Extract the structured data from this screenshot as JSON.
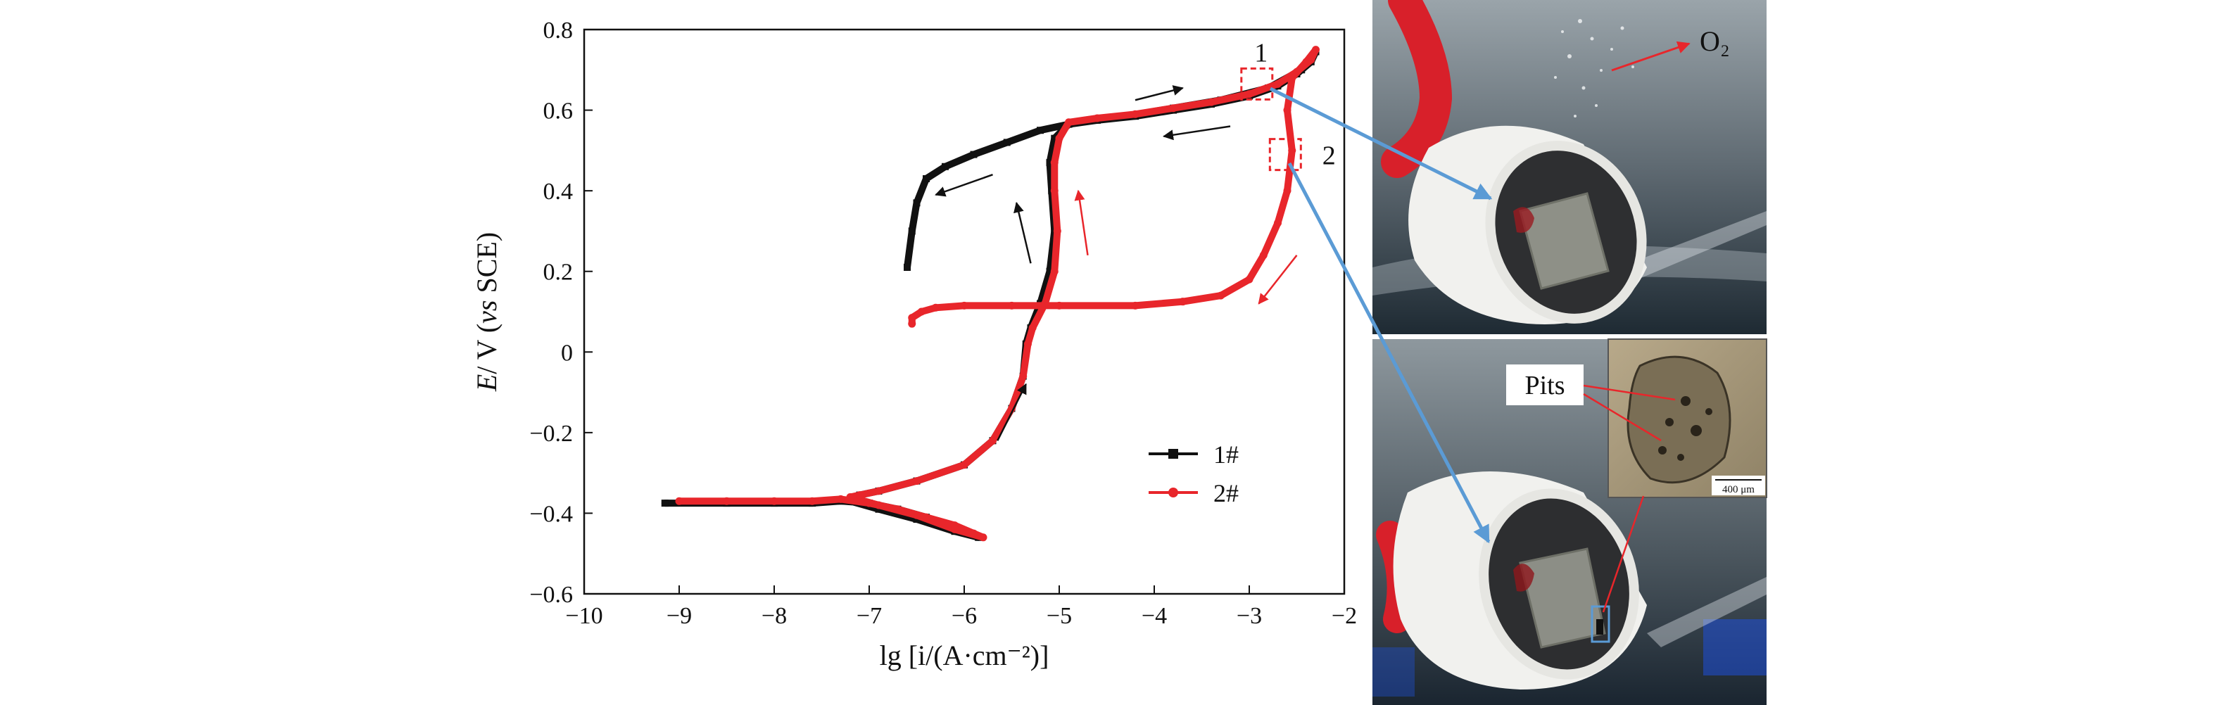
{
  "chart_data": {
    "type": "line",
    "xlabel": "lg [i/(A·cm⁻²)]",
    "ylabel_parts": [
      "E",
      "/ V (",
      "vs",
      " SCE)"
    ],
    "xlim": [
      -10,
      -2
    ],
    "ylim": [
      -0.6,
      0.8
    ],
    "x_ticks": [
      -10,
      -9,
      -8,
      -7,
      -6,
      -5,
      -4,
      -3,
      -2
    ],
    "x_tick_labels": [
      "−10",
      "−9",
      "−8",
      "−7",
      "−6",
      "−5",
      "−4",
      "−3",
      "−2"
    ],
    "y_ticks": [
      -0.6,
      -0.4,
      -0.2,
      0,
      0.2,
      0.4,
      0.6,
      0.8
    ],
    "y_tick_labels": [
      "−0.6",
      "−0.4",
      "−0.2",
      "0",
      "0.2",
      "0.4",
      "0.6",
      "0.8"
    ],
    "legend_position": "lower-right",
    "series": [
      {
        "name": "1#",
        "color": "#111111",
        "marker": "square",
        "points": [
          [
            -9.15,
            -0.375
          ],
          [
            -8.5,
            -0.375
          ],
          [
            -8.0,
            -0.375
          ],
          [
            -7.6,
            -0.375
          ],
          [
            -7.3,
            -0.37
          ],
          [
            -7.0,
            -0.375
          ],
          [
            -6.7,
            -0.39
          ],
          [
            -6.4,
            -0.41
          ],
          [
            -6.1,
            -0.435
          ],
          [
            -5.9,
            -0.455
          ],
          [
            -5.85,
            -0.46
          ],
          [
            -6.1,
            -0.445
          ],
          [
            -6.5,
            -0.415
          ],
          [
            -6.9,
            -0.39
          ],
          [
            -7.2,
            -0.37
          ],
          [
            -7.1,
            -0.355
          ],
          [
            -6.9,
            -0.345
          ],
          [
            -6.5,
            -0.32
          ],
          [
            -6.0,
            -0.28
          ],
          [
            -5.7,
            -0.22
          ],
          [
            -5.5,
            -0.14
          ],
          [
            -5.38,
            -0.06
          ],
          [
            -5.35,
            0.02
          ],
          [
            -5.3,
            0.06
          ],
          [
            -5.2,
            0.12
          ],
          [
            -5.1,
            0.2
          ],
          [
            -5.05,
            0.3
          ],
          [
            -5.08,
            0.4
          ],
          [
            -5.1,
            0.47
          ],
          [
            -5.05,
            0.53
          ],
          [
            -4.9,
            0.565
          ],
          [
            -4.6,
            0.575
          ],
          [
            -4.2,
            0.585
          ],
          [
            -3.8,
            0.6
          ],
          [
            -3.4,
            0.615
          ],
          [
            -3.0,
            0.635
          ],
          [
            -2.7,
            0.66
          ],
          [
            -2.5,
            0.69
          ],
          [
            -2.35,
            0.72
          ],
          [
            -2.3,
            0.745
          ],
          [
            -2.45,
            0.7
          ],
          [
            -2.8,
            0.655
          ],
          [
            -3.3,
            0.625
          ],
          [
            -3.8,
            0.605
          ],
          [
            -4.3,
            0.585
          ],
          [
            -4.8,
            0.57
          ],
          [
            -5.2,
            0.55
          ],
          [
            -5.55,
            0.52
          ],
          [
            -5.9,
            0.49
          ],
          [
            -6.2,
            0.46
          ],
          [
            -6.4,
            0.43
          ],
          [
            -6.5,
            0.37
          ],
          [
            -6.55,
            0.3
          ],
          [
            -6.6,
            0.21
          ]
        ]
      },
      {
        "name": "2#",
        "color": "#e8262b",
        "marker": "circle",
        "points": [
          [
            -9.0,
            -0.37
          ],
          [
            -8.5,
            -0.37
          ],
          [
            -8.0,
            -0.37
          ],
          [
            -7.6,
            -0.37
          ],
          [
            -7.3,
            -0.365
          ],
          [
            -7.0,
            -0.375
          ],
          [
            -6.7,
            -0.39
          ],
          [
            -6.4,
            -0.41
          ],
          [
            -6.1,
            -0.43
          ],
          [
            -5.9,
            -0.45
          ],
          [
            -5.8,
            -0.46
          ],
          [
            -6.1,
            -0.44
          ],
          [
            -6.5,
            -0.405
          ],
          [
            -6.9,
            -0.38
          ],
          [
            -7.2,
            -0.36
          ],
          [
            -7.1,
            -0.355
          ],
          [
            -6.9,
            -0.345
          ],
          [
            -6.5,
            -0.32
          ],
          [
            -6.0,
            -0.28
          ],
          [
            -5.7,
            -0.22
          ],
          [
            -5.5,
            -0.14
          ],
          [
            -5.38,
            -0.06
          ],
          [
            -5.33,
            0.02
          ],
          [
            -5.28,
            0.06
          ],
          [
            -5.15,
            0.12
          ],
          [
            -5.05,
            0.2
          ],
          [
            -5.02,
            0.3
          ],
          [
            -5.05,
            0.4
          ],
          [
            -5.05,
            0.47
          ],
          [
            -5.0,
            0.53
          ],
          [
            -4.9,
            0.57
          ],
          [
            -4.6,
            0.58
          ],
          [
            -4.2,
            0.59
          ],
          [
            -3.8,
            0.605
          ],
          [
            -3.4,
            0.62
          ],
          [
            -3.0,
            0.64
          ],
          [
            -2.7,
            0.665
          ],
          [
            -2.5,
            0.695
          ],
          [
            -2.35,
            0.725
          ],
          [
            -2.3,
            0.75
          ],
          [
            -2.4,
            0.72
          ],
          [
            -2.55,
            0.68
          ],
          [
            -2.6,
            0.6
          ],
          [
            -2.55,
            0.5
          ],
          [
            -2.6,
            0.4
          ],
          [
            -2.7,
            0.32
          ],
          [
            -2.85,
            0.24
          ],
          [
            -3.0,
            0.18
          ],
          [
            -3.3,
            0.14
          ],
          [
            -3.7,
            0.125
          ],
          [
            -4.2,
            0.115
          ],
          [
            -5.0,
            0.115
          ],
          [
            -5.5,
            0.115
          ],
          [
            -6.0,
            0.115
          ],
          [
            -6.3,
            0.11
          ],
          [
            -6.45,
            0.1
          ],
          [
            -6.55,
            0.085
          ],
          [
            -6.55,
            0.07
          ]
        ]
      }
    ],
    "arrows": [
      {
        "from": [
          -4.2,
          0.625
        ],
        "to": [
          -3.7,
          0.655
        ],
        "color": "#111111"
      },
      {
        "from": [
          -3.2,
          0.56
        ],
        "to": [
          -3.9,
          0.535
        ],
        "color": "#111111"
      },
      {
        "from": [
          -5.7,
          0.44
        ],
        "to": [
          -6.3,
          0.39
        ],
        "color": "#111111"
      },
      {
        "from": [
          -5.3,
          0.22
        ],
        "to": [
          -5.45,
          0.37
        ],
        "color": "#111111"
      },
      {
        "from": [
          -5.65,
          -0.22
        ],
        "to": [
          -5.35,
          -0.08
        ],
        "color": "#111111"
      },
      {
        "from": [
          -4.7,
          0.24
        ],
        "to": [
          -4.8,
          0.4
        ],
        "color": "#e8262b"
      },
      {
        "from": [
          -2.5,
          0.24
        ],
        "to": [
          -2.9,
          0.12
        ],
        "color": "#e8262b"
      }
    ],
    "callouts": [
      {
        "label": "1",
        "x": -2.92,
        "y": 0.665
      },
      {
        "label": "2",
        "x": -2.62,
        "y": 0.49
      }
    ]
  },
  "photos": {
    "top_annotation": "O₂",
    "inset_label": "Pits",
    "scale_bar": "400 μm"
  }
}
